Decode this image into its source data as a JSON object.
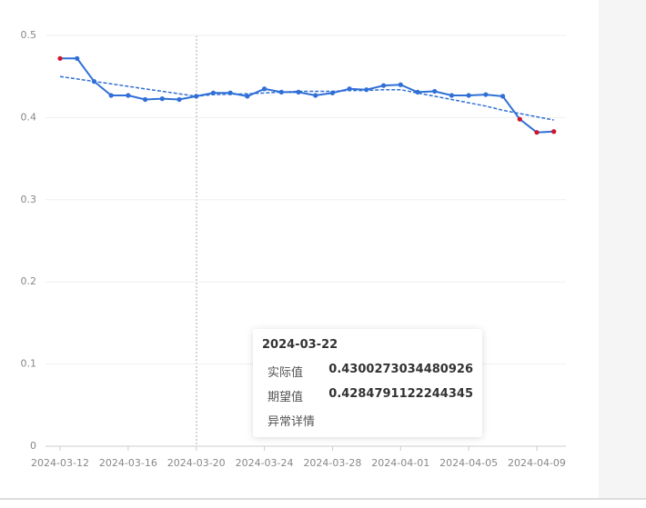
{
  "chart_data": {
    "type": "line",
    "x": [
      "2024-03-12",
      "2024-03-13",
      "2024-03-14",
      "2024-03-15",
      "2024-03-16",
      "2024-03-17",
      "2024-03-18",
      "2024-03-19",
      "2024-03-20",
      "2024-03-21",
      "2024-03-22",
      "2024-03-23",
      "2024-03-24",
      "2024-03-25",
      "2024-03-26",
      "2024-03-27",
      "2024-03-28",
      "2024-03-29",
      "2024-03-30",
      "2024-03-31",
      "2024-04-01",
      "2024-04-02",
      "2024-04-03",
      "2024-04-04",
      "2024-04-05",
      "2024-04-06",
      "2024-04-07",
      "2024-04-08",
      "2024-04-09",
      "2024-04-10"
    ],
    "series": [
      {
        "name": "实际值",
        "color": "#2f6fd6",
        "dash": false,
        "values": [
          0.472,
          0.472,
          0.444,
          0.427,
          0.427,
          0.422,
          0.423,
          0.422,
          0.426,
          0.43,
          0.4300273034480926,
          0.426,
          0.435,
          0.431,
          0.431,
          0.427,
          0.43,
          0.435,
          0.434,
          0.439,
          0.44,
          0.431,
          0.432,
          0.427,
          0.427,
          0.428,
          0.426,
          0.398,
          0.382,
          0.383
        ],
        "point_colors": [
          "#d0142c",
          "#2f6fd6",
          "#2f6fd6",
          "#2f6fd6",
          "#2f6fd6",
          "#2f6fd6",
          "#2f6fd6",
          "#2f6fd6",
          "#2f6fd6",
          "#2f6fd6",
          "#2f6fd6",
          "#2f6fd6",
          "#2f6fd6",
          "#2f6fd6",
          "#2f6fd6",
          "#2f6fd6",
          "#2f6fd6",
          "#2f6fd6",
          "#2f6fd6",
          "#2f6fd6",
          "#2f6fd6",
          "#2f6fd6",
          "#2f6fd6",
          "#2f6fd6",
          "#2f6fd6",
          "#2f6fd6",
          "#2f6fd6",
          "#d0142c",
          "#d0142c",
          "#d0142c"
        ]
      },
      {
        "name": "期望值",
        "color": "#2f6fd6",
        "dash": true,
        "values": [
          0.45,
          0.447,
          0.444,
          0.441,
          0.438,
          0.435,
          0.432,
          0.429,
          0.426,
          0.428,
          0.4284791122244345,
          0.429,
          0.43,
          0.431,
          0.432,
          0.432,
          0.432,
          0.433,
          0.433,
          0.434,
          0.434,
          0.43,
          0.426,
          0.422,
          0.418,
          0.414,
          0.409,
          0.405,
          0.401,
          0.397
        ]
      }
    ],
    "ylim": [
      0,
      0.5
    ],
    "yticks": [
      0,
      0.1,
      0.2,
      0.3,
      0.4,
      0.5
    ],
    "xlim": [
      "2024-03-11",
      "2024-04-11"
    ],
    "xticks": [
      "2024-03-12",
      "2024-03-16",
      "2024-03-20",
      "2024-03-24",
      "2024-03-28",
      "2024-04-01",
      "2024-04-05",
      "2024-04-09"
    ],
    "grid": true,
    "tooltip": {
      "date": "2024-03-22",
      "index": 10,
      "detail_label": "异常详情"
    }
  }
}
